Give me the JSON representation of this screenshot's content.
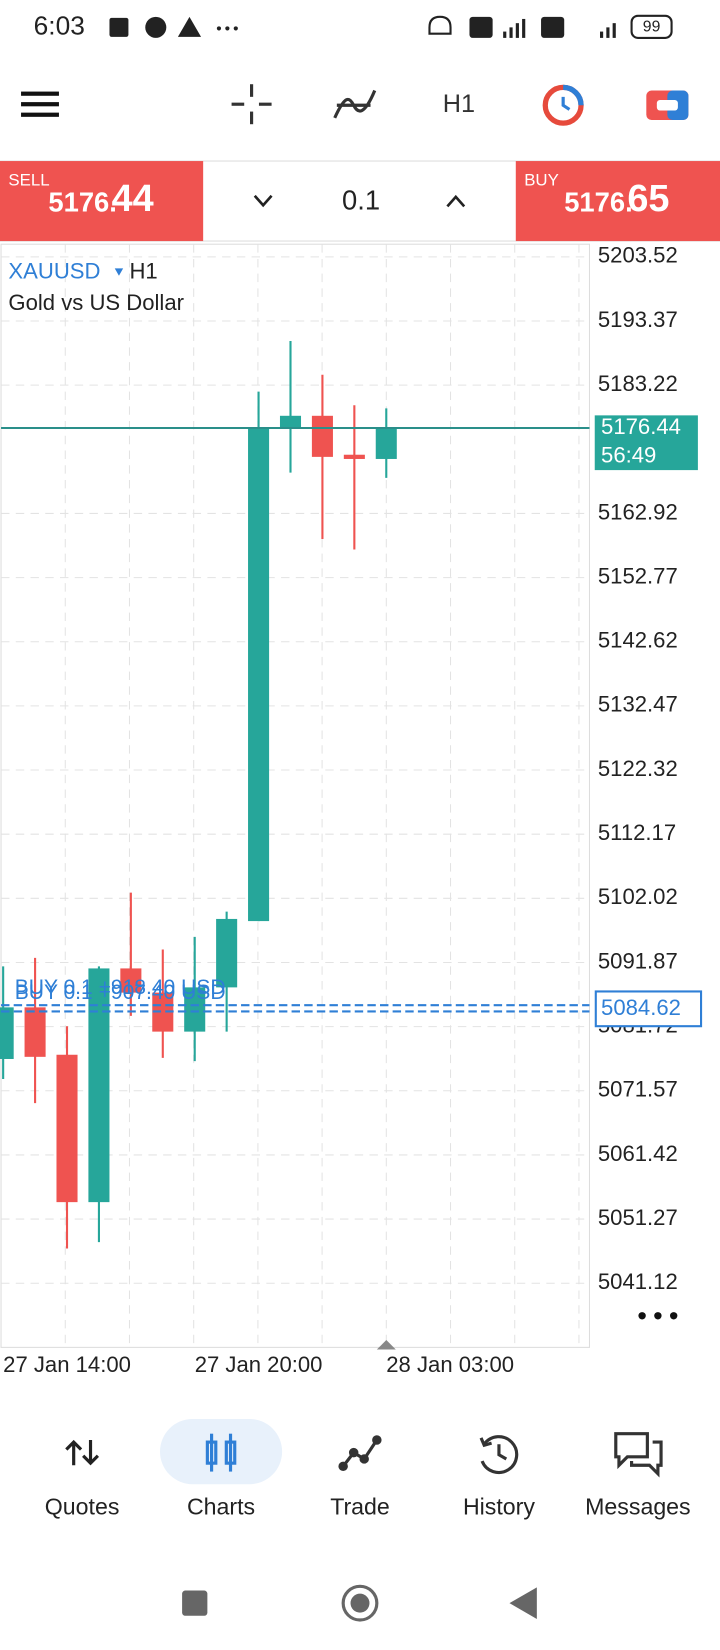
{
  "status_bar": {
    "time": "6:03",
    "battery": "99"
  },
  "toolbar": {
    "timeframe": "H1"
  },
  "trade_panel": {
    "sell": {
      "label": "SELL",
      "price_main": "5176.",
      "price_big": "44"
    },
    "volume": "0.1",
    "buy": {
      "label": "BUY",
      "price_main": "5176.",
      "price_big": "65"
    }
  },
  "symbol": {
    "name": "XAUUSD",
    "timeframe": "H1",
    "description": "Gold vs US Dollar"
  },
  "chart_data": {
    "type": "candlestick",
    "categories": [
      "27 Jan 14:00",
      null,
      null,
      null,
      null,
      null,
      "27 Jan 20:00",
      null,
      null,
      null,
      null,
      null,
      "28 Jan 03:00"
    ],
    "open": [
      5076.6,
      5084.77,
      5077.27,
      5053.95,
      5090.93,
      5087.1,
      5080.93,
      5087.93,
      5098.42,
      5176.37,
      5178.37,
      5172.21,
      5171.54
    ],
    "high": [
      5091.26,
      5092.59,
      5081.77,
      5091.26,
      5102.92,
      5093.93,
      5095.93,
      5099.92,
      5182.2,
      5190.2,
      5184.87,
      5180.04,
      5179.54
    ],
    "low": [
      5073.44,
      5069.61,
      5046.62,
      5047.62,
      5083.43,
      5076.77,
      5076.27,
      5080.93,
      5098.42,
      5169.38,
      5158.88,
      5157.22,
      5168.54
    ],
    "close": [
      5084.77,
      5076.94,
      5053.95,
      5090.93,
      5087.1,
      5080.93,
      5087.93,
      5098.76,
      5176.37,
      5178.37,
      5171.87,
      5171.54,
      5176.44
    ],
    "up_color": "#26a69a",
    "down_color": "#ef5350",
    "ylim": [
      5030.97,
      5205.52
    ],
    "yticks": [
      5203.52,
      5193.37,
      5183.22,
      5162.92,
      5152.77,
      5142.62,
      5132.47,
      5122.32,
      5112.17,
      5102.02,
      5091.87,
      5081.72,
      5071.57,
      5061.42,
      5051.27,
      5041.12
    ],
    "grid": true,
    "current_price": 5176.44,
    "countdown": "56:49",
    "position_price": 5084.62,
    "position_labels": [
      "BUY 0.1 +907.40 USD",
      "BUY 0.1 +918.40 USD"
    ]
  },
  "bottom_nav": {
    "items": [
      "Quotes",
      "Charts",
      "Trade",
      "History",
      "Messages"
    ],
    "active": 1
  }
}
